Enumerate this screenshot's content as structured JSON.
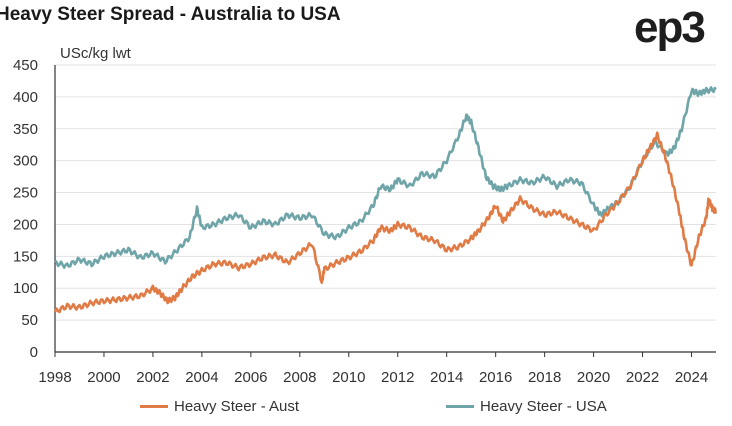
{
  "title": "Heavy Steer Spread - Australia to USA",
  "logo": "ep3",
  "chart_data": {
    "type": "line",
    "ylabel": "USc/kg lwt",
    "ylim": [
      0,
      450
    ],
    "xlim": [
      1998,
      2025
    ],
    "yticks": [
      0,
      50,
      100,
      150,
      200,
      250,
      300,
      350,
      400,
      450
    ],
    "xticks": [
      "1998",
      "2000",
      "2002",
      "2004",
      "2006",
      "2008",
      "2010",
      "2012",
      "2014",
      "2016",
      "2018",
      "2020",
      "2022",
      "2024"
    ],
    "grid": true,
    "legend_position": "bottom",
    "series": [
      {
        "name": "Heavy Steer - Aust",
        "color": "#e07b45",
        "x": [
          1998.0,
          1998.5,
          1999.0,
          1999.5,
          2000.0,
          2000.5,
          2001.0,
          2001.5,
          2002.0,
          2002.3,
          2002.6,
          2002.9,
          2003.2,
          2003.6,
          2004.0,
          2004.5,
          2005.0,
          2005.5,
          2006.0,
          2006.5,
          2007.0,
          2007.5,
          2008.0,
          2008.5,
          2008.9,
          2009.0,
          2009.5,
          2010.0,
          2010.5,
          2011.0,
          2011.3,
          2011.7,
          2012.0,
          2012.5,
          2013.0,
          2013.5,
          2014.0,
          2014.5,
          2015.0,
          2015.3,
          2015.7,
          2016.0,
          2016.3,
          2016.6,
          2017.0,
          2017.5,
          2018.0,
          2018.5,
          2019.0,
          2019.5,
          2020.0,
          2020.5,
          2021.0,
          2021.5,
          2022.0,
          2022.3,
          2022.6,
          2022.9,
          2023.2,
          2023.5,
          2023.7,
          2024.0,
          2024.3,
          2024.6
        ],
        "y": [
          63,
          72,
          70,
          77,
          80,
          82,
          85,
          88,
          100,
          92,
          80,
          85,
          100,
          118,
          128,
          138,
          140,
          132,
          138,
          148,
          152,
          140,
          155,
          170,
          110,
          130,
          140,
          148,
          158,
          175,
          195,
          190,
          200,
          195,
          180,
          175,
          160,
          165,
          178,
          190,
          210,
          230,
          205,
          220,
          240,
          225,
          215,
          220,
          210,
          200,
          190,
          215,
          235,
          260,
          300,
          320,
          340,
          310,
          270,
          220,
          180,
          135,
          180,
          210
        ],
        "tail_x": [
          2024.7,
          2024.85,
          2025.0
        ],
        "tail_y": [
          240,
          225,
          220
        ]
      },
      {
        "name": "Heavy Steer - USA",
        "color": "#6fa5a8",
        "x": [
          1998.0,
          1998.5,
          1999.0,
          1999.5,
          2000.0,
          2000.5,
          2001.0,
          2001.5,
          2002.0,
          2002.5,
          2003.0,
          2003.5,
          2003.8,
          2004.0,
          2004.5,
          2005.0,
          2005.5,
          2006.0,
          2006.5,
          2007.0,
          2007.5,
          2008.0,
          2008.5,
          2009.0,
          2009.5,
          2010.0,
          2010.5,
          2011.0,
          2011.3,
          2011.7,
          2012.0,
          2012.5,
          2013.0,
          2013.5,
          2014.0,
          2014.5,
          2014.8,
          2015.0,
          2015.3,
          2015.6,
          2015.9,
          2016.2,
          2016.5,
          2017.0,
          2017.5,
          2018.0,
          2018.5,
          2019.0,
          2019.5,
          2020.0,
          2020.3,
          2020.6,
          2021.0,
          2021.5,
          2022.0,
          2022.5,
          2023.0,
          2023.3,
          2023.6,
          2024.0,
          2024.3,
          2024.6,
          2025.0
        ],
        "y": [
          140,
          135,
          145,
          138,
          150,
          155,
          160,
          148,
          155,
          142,
          160,
          180,
          225,
          195,
          200,
          210,
          215,
          195,
          205,
          200,
          215,
          210,
          215,
          185,
          180,
          195,
          205,
          230,
          260,
          255,
          270,
          260,
          280,
          275,
          300,
          340,
          370,
          360,
          320,
          275,
          260,
          255,
          260,
          270,
          265,
          275,
          260,
          270,
          265,
          230,
          215,
          225,
          235,
          260,
          300,
          330,
          310,
          320,
          350,
          410,
          405,
          410,
          412
        ]
      }
    ]
  }
}
